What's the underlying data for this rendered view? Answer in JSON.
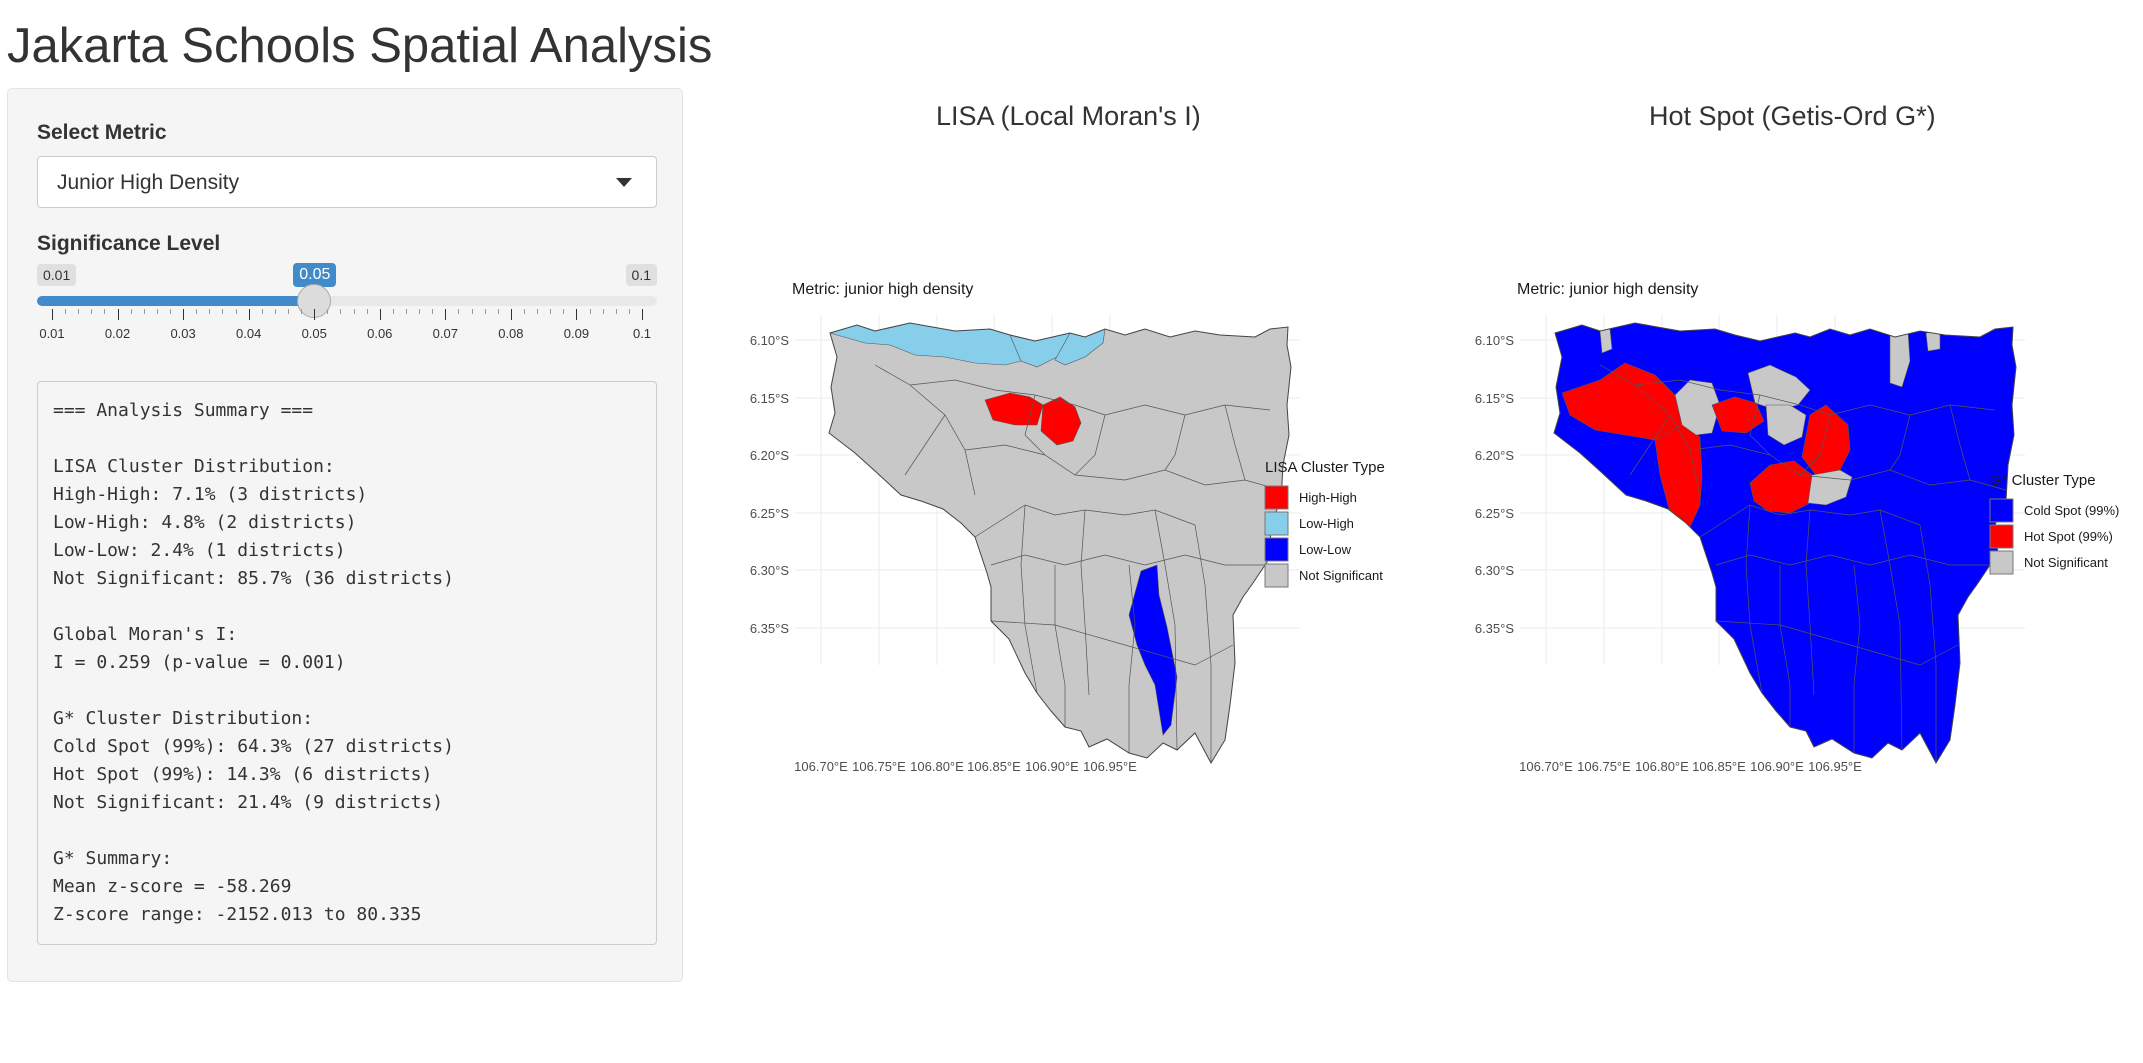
{
  "app_title": "Jakarta Schools Spatial Analysis",
  "sidebar": {
    "metric_label": "Select Metric",
    "metric_value": "Junior High Density",
    "significance_label": "Significance Level",
    "slider": {
      "min_label": "0.01",
      "max_label": "0.1",
      "value_label": "0.05",
      "min": 0.01,
      "max": 0.1,
      "value": 0.05,
      "tick_labels": [
        "0.01",
        "0.02",
        "0.03",
        "0.04",
        "0.05",
        "0.06",
        "0.07",
        "0.08",
        "0.09",
        "0.1"
      ],
      "accent_color": "#428bca"
    }
  },
  "summary": {
    "lines": [
      "=== Analysis Summary ===",
      "",
      "LISA Cluster Distribution:",
      "High-High: 7.1% (3 districts)",
      "Low-High: 4.8% (2 districts)",
      "Low-Low: 2.4% (1 districts)",
      "Not Significant: 85.7% (36 districts)",
      "",
      "Global Moran's I:",
      "I = 0.259 (p-value = 0.001)",
      "",
      "G* Cluster Distribution:",
      "Cold Spot (99%): 64.3% (27 districts)",
      "Hot Spot (99%): 14.3% (6 districts)",
      "Not Significant: 21.4% (9 districts)",
      "",
      "G* Summary:",
      "Mean z-score = -58.269",
      "Z-score range: -2152.013 to 80.335"
    ]
  },
  "maps": {
    "lisa": {
      "title": "LISA (Local Moran's I)",
      "subtitle": "Metric: junior high density",
      "legend_title": "LISA Cluster Type",
      "legend": [
        {
          "label": "High-High",
          "color": "#ff0000"
        },
        {
          "label": "Low-High",
          "color": "#87ceeb"
        },
        {
          "label": "Low-Low",
          "color": "#0000ff"
        },
        {
          "label": "Not Significant",
          "color": "#c8c8c8"
        }
      ]
    },
    "gstar": {
      "title": "Hot Spot (Getis-Ord G*)",
      "subtitle": "Metric: junior high density",
      "legend_title": "G* Cluster Type",
      "legend": [
        {
          "label": "Cold Spot (99%)",
          "color": "#0000ff"
        },
        {
          "label": "Hot Spot (99%)",
          "color": "#ff0000"
        },
        {
          "label": "Not Significant",
          "color": "#c8c8c8"
        }
      ]
    },
    "y_ticks": [
      "6.10°S",
      "6.15°S",
      "6.20°S",
      "6.25°S",
      "6.30°S",
      "6.35°S"
    ],
    "x_ticks": [
      "106.70°E",
      "106.75°E",
      "106.80°E",
      "106.85°E",
      "106.90°E",
      "106.95°E"
    ]
  }
}
